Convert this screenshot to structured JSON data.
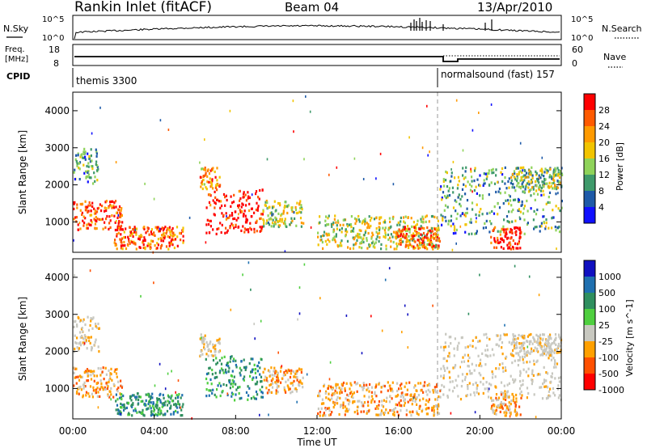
{
  "header": {
    "station": "Rankin Inlet (fitACF)",
    "beam": "Beam 04",
    "date": "13/Apr/2010"
  },
  "noise_panel": {
    "left_label": "N.Sky",
    "right_label": "N.Search",
    "left_ticks": [
      "10^5",
      "10^0"
    ],
    "right_ticks": [
      "10^5",
      "10^0"
    ]
  },
  "freq_panel": {
    "left_label_line1": "Freq.",
    "left_label_line2": "[MHz]",
    "right_label": "Nave",
    "left_ticks": [
      "18",
      "8"
    ],
    "right_ticks": [
      "60",
      "0"
    ]
  },
  "cpid_panel": {
    "label": "CPID",
    "segments": [
      {
        "name": "themis 3300",
        "start": 0
      },
      {
        "name": "normalsound (fast) 157",
        "start": 18.0
      }
    ]
  },
  "chart_data": [
    {
      "type": "heatmap",
      "title": "Power",
      "ylabel": "Slant Range [km]",
      "colorbar_label": "Power [dB]",
      "colorbar_ticks": [
        "28",
        "24",
        "20",
        "16",
        "12",
        "8",
        "4"
      ],
      "colorbar_colors": [
        "#ff0000",
        "#ff5a00",
        "#ff9a00",
        "#f2c400",
        "#8fd35a",
        "#3f9a6b",
        "#1e5aa8",
        "#1010ff"
      ],
      "yticks": [
        "1000",
        "2000",
        "3000",
        "4000"
      ],
      "ylim": [
        180,
        4500
      ],
      "xlim": [
        0,
        24
      ],
      "features": [
        {
          "t0": 0.0,
          "t1": 2.4,
          "r0": 800,
          "r1": 1600,
          "level": 0.85
        },
        {
          "t0": 0.0,
          "t1": 1.3,
          "r0": 2000,
          "r1": 3000,
          "level": 0.35
        },
        {
          "t0": 2.0,
          "t1": 5.4,
          "r0": 300,
          "r1": 900,
          "level": 0.8
        },
        {
          "t0": 6.5,
          "t1": 9.3,
          "r0": 700,
          "r1": 1900,
          "level": 0.95
        },
        {
          "t0": 6.2,
          "t1": 7.2,
          "r0": 1900,
          "r1": 2500,
          "level": 0.7
        },
        {
          "t0": 9.3,
          "t1": 11.3,
          "r0": 900,
          "r1": 1600,
          "level": 0.45
        },
        {
          "t0": 12.0,
          "t1": 18.0,
          "r0": 300,
          "r1": 1200,
          "level": 0.5
        },
        {
          "t0": 15.8,
          "t1": 18.0,
          "r0": 300,
          "r1": 900,
          "level": 0.75
        },
        {
          "t0": 18.0,
          "t1": 24.0,
          "r0": 700,
          "r1": 2500,
          "level": 0.35
        },
        {
          "t0": 20.5,
          "t1": 22.0,
          "r0": 300,
          "r1": 900,
          "level": 0.9
        },
        {
          "t0": 21.5,
          "t1": 24.0,
          "r0": 1900,
          "r1": 2500,
          "level": 0.45
        }
      ]
    },
    {
      "type": "heatmap",
      "title": "Velocity",
      "ylabel": "Slant Range [km]",
      "colorbar_label": "Velocity [m s^-1]",
      "colorbar_ticks": [
        "1000",
        "500",
        "100",
        "25",
        "-25",
        "-100",
        "-500",
        "-1000"
      ],
      "colorbar_colors": [
        "#1010c0",
        "#1f70b0",
        "#2f8f5f",
        "#4fcf3f",
        "#c8c8c0",
        "#ffa000",
        "#ff5000",
        "#ff0000"
      ],
      "yticks": [
        "1000",
        "2000",
        "3000",
        "4000"
      ],
      "ylim": [
        180,
        4500
      ],
      "xlim": [
        0,
        24
      ],
      "features": [
        {
          "t0": 0.0,
          "t1": 2.4,
          "r0": 800,
          "r1": 1600,
          "vel": "orange"
        },
        {
          "t0": 0.0,
          "t1": 1.3,
          "r0": 2000,
          "r1": 3000,
          "vel": "grey"
        },
        {
          "t0": 2.0,
          "t1": 5.4,
          "r0": 300,
          "r1": 900,
          "vel": "green"
        },
        {
          "t0": 6.5,
          "t1": 9.3,
          "r0": 700,
          "r1": 1900,
          "vel": "green"
        },
        {
          "t0": 6.2,
          "t1": 7.2,
          "r0": 1900,
          "r1": 2500,
          "vel": "grey"
        },
        {
          "t0": 9.3,
          "t1": 11.3,
          "r0": 900,
          "r1": 1600,
          "vel": "orange"
        },
        {
          "t0": 12.0,
          "t1": 18.0,
          "r0": 300,
          "r1": 1200,
          "vel": "orange"
        },
        {
          "t0": 18.0,
          "t1": 24.0,
          "r0": 700,
          "r1": 2500,
          "vel": "grey"
        },
        {
          "t0": 20.5,
          "t1": 22.0,
          "r0": 300,
          "r1": 900,
          "vel": "orange"
        },
        {
          "t0": 21.5,
          "t1": 24.0,
          "r0": 1900,
          "r1": 2500,
          "vel": "grey"
        }
      ]
    }
  ],
  "xaxis": {
    "label": "Time UT",
    "ticks": [
      "00:00",
      "04:00",
      "08:00",
      "12:00",
      "16:00",
      "20:00",
      "00:00"
    ]
  }
}
